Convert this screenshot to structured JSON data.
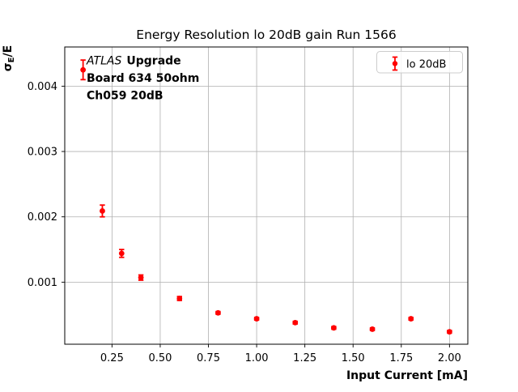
{
  "chart_data": {
    "type": "scatter",
    "title": "Energy Resolution lo 20dB gain Run 1566",
    "xlabel": "Input Current [mA]",
    "ylabel": "σE/E",
    "ylabel_parts": {
      "symbol": "σ",
      "subscript": "E",
      "suffix": "/E"
    },
    "xlim": [
      0.005,
      2.095
    ],
    "ylim": [
      5e-05,
      0.0046
    ],
    "grid": true,
    "legend": {
      "position": "upper right",
      "label": "lo 20dB"
    },
    "xticks": [
      0.25,
      0.5,
      0.75,
      1.0,
      1.25,
      1.5,
      1.75,
      2.0
    ],
    "xtick_labels": [
      "0.25",
      "0.50",
      "0.75",
      "1.00",
      "1.25",
      "1.50",
      "1.75",
      "2.00"
    ],
    "yticks": [
      0.001,
      0.002,
      0.003,
      0.004
    ],
    "ytick_labels": [
      "0.001",
      "0.002",
      "0.003",
      "0.004"
    ],
    "series": [
      {
        "name": "lo 20dB",
        "color": "#ff0000",
        "marker": "circle-with-errorbar",
        "x": [
          0.1,
          0.2,
          0.3,
          0.4,
          0.6,
          0.8,
          1.0,
          1.2,
          1.4,
          1.6,
          1.8,
          2.0
        ],
        "y": [
          0.00425,
          0.00209,
          0.00144,
          0.00107,
          0.00075,
          0.00053,
          0.00044,
          0.00038,
          0.0003,
          0.00028,
          0.00044,
          0.00024
        ],
        "yerr": [
          0.00015,
          9e-05,
          6e-05,
          4e-05,
          3e-05,
          2e-05,
          2e-05,
          2e-05,
          2e-05,
          2e-05,
          2e-05,
          2e-05
        ]
      }
    ],
    "annotation": {
      "line1_italic": "ATLAS",
      "line1_bold": "Upgrade",
      "line2": "Board 634 50ohm",
      "line3": "Ch059 20dB"
    },
    "colors": {
      "series": "#ff0000",
      "grid": "#b0b0b0",
      "spine": "#000000",
      "legend_border": "#cccccc",
      "text": "#000000",
      "background": "#ffffff"
    }
  }
}
